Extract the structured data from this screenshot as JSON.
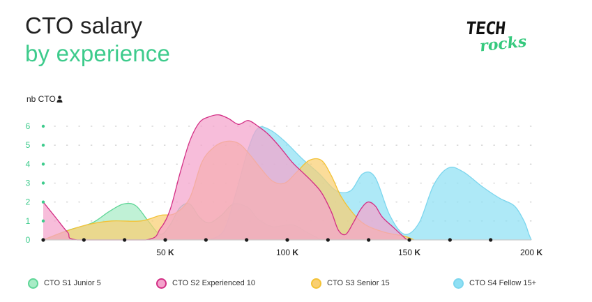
{
  "title": {
    "line1": "CTO salary",
    "line2": "by experience"
  },
  "logo": {
    "line1": "TECH",
    "line2": "rocks"
  },
  "colors": {
    "title_accent": "#3dcb8c",
    "y_tick": "#3dcb8c"
  },
  "chart_data": {
    "type": "area",
    "ylabel": "nb CTO",
    "xlim": [
      0,
      200
    ],
    "ylim": [
      0,
      6
    ],
    "yticks": [
      0,
      1,
      2,
      3,
      4,
      5,
      6
    ],
    "xticks": [
      {
        "value": 50,
        "num": "50",
        "unit": "K"
      },
      {
        "value": 100,
        "num": "100",
        "unit": "K"
      },
      {
        "value": 150,
        "num": "150",
        "unit": "K"
      },
      {
        "value": 200,
        "num": "200",
        "unit": "K"
      }
    ],
    "grid": true,
    "legend_position": "bottom",
    "series": [
      {
        "name": "CTO S1 Junior 5",
        "fill": "#a8ecc6",
        "stroke": "#5fd697",
        "points": [
          [
            0,
            0
          ],
          [
            10,
            0.5
          ],
          [
            20,
            0.9
          ],
          [
            27,
            1.5
          ],
          [
            33,
            1.9
          ],
          [
            38,
            1.8
          ],
          [
            43,
            1
          ],
          [
            48,
            0.3
          ],
          [
            52,
            0.8
          ],
          [
            56,
            1.7
          ],
          [
            60,
            1.9
          ],
          [
            64,
            1.2
          ],
          [
            68,
            0.9
          ],
          [
            73,
            1.3
          ],
          [
            78,
            1.9
          ],
          [
            84,
            1.7
          ],
          [
            88,
            1.1
          ],
          [
            94,
            0.7
          ],
          [
            102,
            0.8
          ],
          [
            108,
            0.4
          ],
          [
            114,
            0
          ]
        ]
      },
      {
        "name": "CTO S4 Fellow 15+",
        "fill": "#8fe0f4",
        "stroke": "#7cd6ee",
        "points": [
          [
            68,
            0
          ],
          [
            74,
            0.5
          ],
          [
            79,
            2.5
          ],
          [
            84,
            4.8
          ],
          [
            88,
            5.9
          ],
          [
            93,
            5.8
          ],
          [
            99,
            5.2
          ],
          [
            106,
            4.3
          ],
          [
            113,
            3.5
          ],
          [
            120,
            2.6
          ],
          [
            126,
            2.6
          ],
          [
            131,
            3.5
          ],
          [
            136,
            3.3
          ],
          [
            142,
            1.3
          ],
          [
            148,
            0.3
          ],
          [
            154,
            0.9
          ],
          [
            160,
            2.9
          ],
          [
            166,
            3.8
          ],
          [
            172,
            3.6
          ],
          [
            180,
            2.8
          ],
          [
            187,
            2.2
          ],
          [
            193,
            1.8
          ],
          [
            197,
            1
          ],
          [
            199,
            0.3
          ],
          [
            200,
            0
          ]
        ]
      },
      {
        "name": "CTO S3 Senior 15",
        "fill": "#f9cf72",
        "stroke": "#f3c236",
        "points": [
          [
            0,
            0
          ],
          [
            8,
            0.4
          ],
          [
            18,
            0.8
          ],
          [
            28,
            1
          ],
          [
            40,
            1
          ],
          [
            48,
            1.3
          ],
          [
            54,
            1.4
          ],
          [
            60,
            2.2
          ],
          [
            65,
            4.1
          ],
          [
            70,
            4.9
          ],
          [
            75,
            5.2
          ],
          [
            80,
            5.1
          ],
          [
            84,
            4.6
          ],
          [
            89,
            3.8
          ],
          [
            94,
            3.1
          ],
          [
            99,
            3
          ],
          [
            104,
            3.6
          ],
          [
            109,
            4.2
          ],
          [
            114,
            4.2
          ],
          [
            118,
            3.4
          ],
          [
            122,
            2.3
          ],
          [
            127,
            1.4
          ],
          [
            132,
            0.8
          ],
          [
            140,
            0.4
          ],
          [
            148,
            0.2
          ],
          [
            152,
            0
          ]
        ]
      },
      {
        "name": "CTO S2 Experienced 10",
        "fill": "#f4a3cc",
        "stroke": "#d32e85",
        "points": [
          [
            0,
            2
          ],
          [
            5,
            1.2
          ],
          [
            10,
            0.4
          ],
          [
            14,
            0
          ],
          [
            42,
            0
          ],
          [
            48,
            0.6
          ],
          [
            52,
            1.6
          ],
          [
            56,
            3.5
          ],
          [
            60,
            5.2
          ],
          [
            64,
            6.2
          ],
          [
            68,
            6.5
          ],
          [
            72,
            6.6
          ],
          [
            76,
            6.4
          ],
          [
            80,
            6.1
          ],
          [
            84,
            6.3
          ],
          [
            88,
            6
          ],
          [
            92,
            5.6
          ],
          [
            97,
            4.9
          ],
          [
            102,
            4.1
          ],
          [
            106,
            3.6
          ],
          [
            110,
            3.1
          ],
          [
            114,
            2.5
          ],
          [
            118,
            1.5
          ],
          [
            121,
            0.5
          ],
          [
            124,
            0.3
          ],
          [
            127,
            0.9
          ],
          [
            130,
            1.6
          ],
          [
            133,
            2
          ],
          [
            136,
            1.8
          ],
          [
            139,
            1.2
          ],
          [
            144,
            0.6
          ],
          [
            149,
            0
          ]
        ]
      }
    ]
  }
}
